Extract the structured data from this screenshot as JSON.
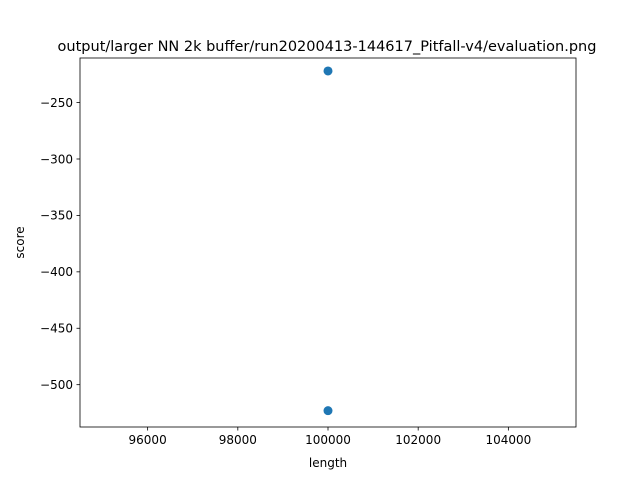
{
  "chart_data": {
    "type": "scatter",
    "title": "output/larger NN 2k buffer/run20200413-144617_Pitfall-v4/evaluation.png",
    "xlabel": "length",
    "ylabel": "score",
    "xlim": [
      94500,
      105500
    ],
    "ylim": [
      -537.5,
      -210.5
    ],
    "xticks": [
      96000,
      98000,
      100000,
      102000,
      104000
    ],
    "yticks": [
      -250,
      -300,
      -350,
      -400,
      -450,
      -500
    ],
    "xtick_labels": [
      "96000",
      "98000",
      "100000",
      "102000",
      "104000"
    ],
    "ytick_labels": [
      "−250",
      "−300",
      "−350",
      "−400",
      "−450",
      "−500"
    ],
    "series": [
      {
        "x": [
          100000,
          100000
        ],
        "y": [
          -222,
          -523
        ],
        "color": "#1f77b4"
      }
    ],
    "grid": false,
    "legend": "none"
  }
}
